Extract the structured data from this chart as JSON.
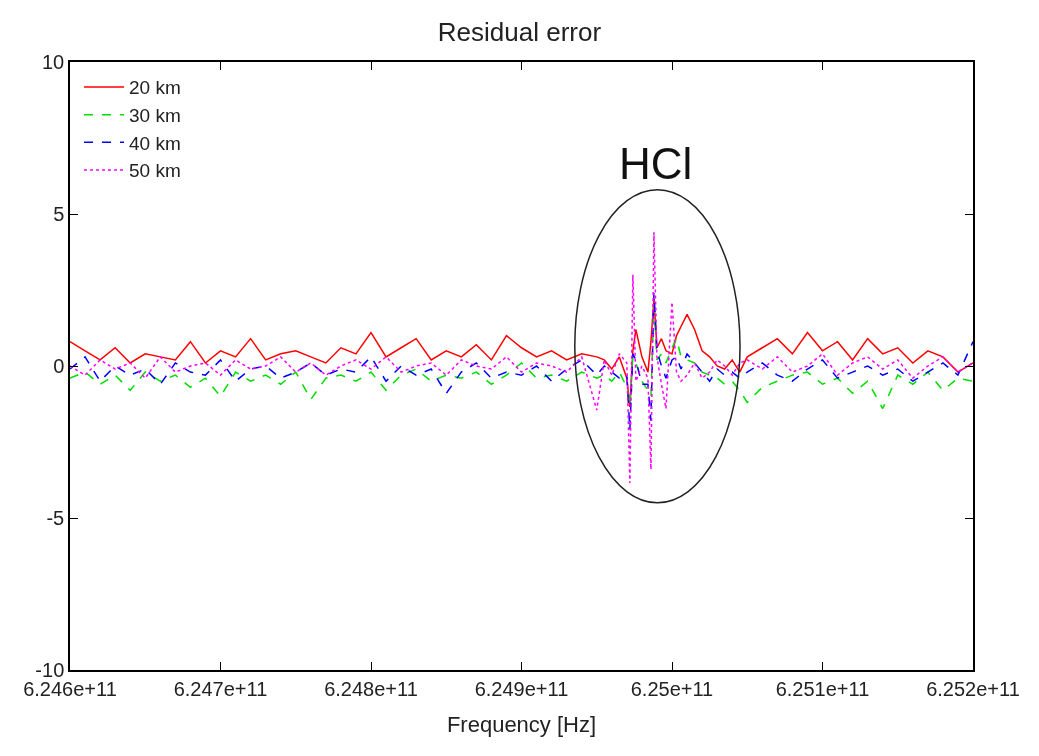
{
  "chart_data": {
    "type": "line",
    "title": "Residual error",
    "xlabel": "Frequency [Hz]",
    "x": [
      624600000000.0,
      624610000000.0,
      624620000000.0,
      624630000000.0,
      624640000000.0,
      624650000000.0,
      624660000000.0,
      624670000000.0,
      624680000000.0,
      624690000000.0,
      624700000000.0,
      624710000000.0,
      624720000000.0,
      624730000000.0,
      624740000000.0,
      624750000000.0,
      624760000000.0,
      624770000000.0,
      624780000000.0,
      624790000000.0,
      624800000000.0,
      624810000000.0,
      624820000000.0,
      624830000000.0,
      624840000000.0,
      624850000000.0,
      624860000000.0,
      624870000000.0,
      624880000000.0,
      624890000000.0,
      624900000000.0,
      624910000000.0,
      624920000000.0,
      624930000000.0,
      624940000000.0,
      624950000000.0,
      624955000000.0,
      624960000000.0,
      624965000000.0,
      624970000000.0,
      624972000000.0,
      624974000000.0,
      624976000000.0,
      624980000000.0,
      624984000000.0,
      624986000000.0,
      624988000000.0,
      624990000000.0,
      624993000000.0,
      624996000000.0,
      625000000000.0,
      625003000000.0,
      625006000000.0,
      625010000000.0,
      625015000000.0,
      625020000000.0,
      625025000000.0,
      625030000000.0,
      625035000000.0,
      625040000000.0,
      625045000000.0,
      625050000000.0,
      625060000000.0,
      625070000000.0,
      625080000000.0,
      625090000000.0,
      625100000000.0,
      625110000000.0,
      625120000000.0,
      625130000000.0,
      625140000000.0,
      625150000000.0,
      625160000000.0,
      625170000000.0,
      625180000000.0,
      625190000000.0,
      625200000000.0
    ],
    "series": [
      {
        "name": "20 km",
        "color": "#ff0000",
        "line_style": "solid",
        "values": [
          0.8,
          0.5,
          0.2,
          0.6,
          0.1,
          0.4,
          0.3,
          0.2,
          0.8,
          0.1,
          0.5,
          0.3,
          0.9,
          0.2,
          0.4,
          0.5,
          0.3,
          0.1,
          0.6,
          0.4,
          1.1,
          0.3,
          0.6,
          0.9,
          0.2,
          0.5,
          0.3,
          0.7,
          0.2,
          1.0,
          0.6,
          0.3,
          0.5,
          0.2,
          0.4,
          0.3,
          0.2,
          -0.1,
          0.3,
          -0.4,
          -1.35,
          0.5,
          1.2,
          0.3,
          -0.2,
          0.8,
          2.2,
          0.6,
          0.9,
          0.5,
          0.4,
          1.0,
          1.3,
          1.7,
          1.2,
          0.5,
          0.3,
          0.0,
          -0.1,
          0.2,
          -0.2,
          0.3,
          0.6,
          0.9,
          0.4,
          1.1,
          0.5,
          0.8,
          0.2,
          0.9,
          0.4,
          0.6,
          0.1,
          0.5,
          0.3,
          -0.2,
          0.1
        ]
      },
      {
        "name": "30 km",
        "color": "#00dd00",
        "line_style": "dashed",
        "values": [
          -0.4,
          -0.2,
          -0.6,
          -0.3,
          -0.8,
          -0.2,
          -0.5,
          -0.3,
          -0.7,
          -0.4,
          -1.0,
          -0.2,
          -0.5,
          -0.3,
          -0.6,
          -0.2,
          -1.1,
          -0.4,
          -0.3,
          -0.5,
          -0.2,
          -0.8,
          -0.3,
          -0.1,
          -0.5,
          -0.3,
          -0.4,
          -0.2,
          -0.6,
          -0.3,
          0.1,
          -0.4,
          -0.3,
          -0.5,
          -0.2,
          -0.4,
          -0.3,
          -0.5,
          -0.2,
          -0.7,
          -1.3,
          0.3,
          0.1,
          -0.5,
          -0.8,
          -1.0,
          2.0,
          0.2,
          0.4,
          0.1,
          0.6,
          0.9,
          0.3,
          0.2,
          0.1,
          -0.2,
          -0.3,
          -0.4,
          -0.6,
          -0.5,
          -0.8,
          -1.2,
          -0.7,
          -0.5,
          -0.3,
          -0.2,
          -0.6,
          -0.4,
          -0.9,
          -0.5,
          -1.4,
          -0.3,
          -0.6,
          -0.2,
          -0.8,
          -0.4,
          -0.5
        ]
      },
      {
        "name": "40 km",
        "color": "#0000ff",
        "line_style": "dashed",
        "values": [
          -0.1,
          0.3,
          -0.5,
          0.0,
          -0.3,
          -0.1,
          -0.6,
          0.1,
          -0.2,
          -0.3,
          0.2,
          -0.5,
          -0.1,
          0.0,
          -0.4,
          -0.2,
          0.1,
          -0.3,
          -0.1,
          -0.2,
          0.3,
          -0.5,
          0.0,
          -0.3,
          -0.1,
          -0.9,
          -0.2,
          0.1,
          -0.4,
          -0.2,
          -0.3,
          0.0,
          -0.5,
          -0.1,
          0.2,
          -0.3,
          0.0,
          -0.2,
          -0.4,
          -0.3,
          -2.1,
          0.4,
          0.2,
          -0.6,
          -0.6,
          -1.8,
          2.4,
          0.5,
          0.0,
          -0.4,
          0.2,
          0.3,
          -0.1,
          0.4,
          0.1,
          -0.2,
          -0.5,
          -0.1,
          -0.3,
          -0.2,
          -0.4,
          -0.2,
          0.1,
          -0.3,
          -0.5,
          -0.1,
          0.2,
          -0.4,
          -0.2,
          0.0,
          -0.3,
          -0.1,
          -0.5,
          -0.2,
          0.1,
          -0.3,
          0.8
        ]
      },
      {
        "name": "50 km",
        "color": "#ff00ff",
        "line_style": "dotted",
        "values": [
          0.0,
          -0.3,
          0.2,
          -0.1,
          0.1,
          -0.4,
          0.3,
          -0.2,
          0.0,
          0.1,
          -0.3,
          0.2,
          -0.1,
          0.0,
          0.3,
          -0.2,
          0.1,
          -0.3,
          0.0,
          0.2,
          -0.1,
          0.3,
          -0.2,
          0.0,
          0.1,
          -0.3,
          0.2,
          0.0,
          -0.1,
          0.3,
          -0.2,
          0.1,
          0.0,
          -0.2,
          0.3,
          -1.45,
          0.2,
          -0.3,
          0.4,
          0.1,
          -3.85,
          3.0,
          -0.5,
          0.0,
          -0.4,
          -3.4,
          4.4,
          0.3,
          -0.6,
          -1.4,
          2.1,
          -0.2,
          -0.5,
          -0.3,
          0.1,
          -0.4,
          -0.2,
          0.2,
          0.0,
          -0.3,
          0.1,
          0.2,
          -0.1,
          0.3,
          -0.2,
          0.0,
          0.4,
          -0.3,
          0.1,
          0.3,
          -0.1,
          0.2,
          -0.4,
          0.0,
          0.3,
          -0.2,
          0.1
        ]
      }
    ],
    "annotations": [
      "HCl"
    ],
    "xlim": [
      624600000000.0,
      625200000000.0
    ],
    "xticks": [
      {
        "value": 624600000000.0,
        "label": "6.246e+11"
      },
      {
        "value": 624700000000.0,
        "label": "6.247e+11"
      },
      {
        "value": 624800000000.0,
        "label": "6.248e+11"
      },
      {
        "value": 624900000000.0,
        "label": "6.249e+11"
      },
      {
        "value": 625000000000.0,
        "label": "6.25e+11"
      },
      {
        "value": 625100000000.0,
        "label": "6.251e+11"
      },
      {
        "value": 625200000000.0,
        "label": "6.252e+11"
      }
    ],
    "ylim": [
      -10,
      10
    ],
    "yticks": [
      -10,
      -5,
      0,
      5,
      10
    ],
    "legend": "top left",
    "marker": "none"
  }
}
